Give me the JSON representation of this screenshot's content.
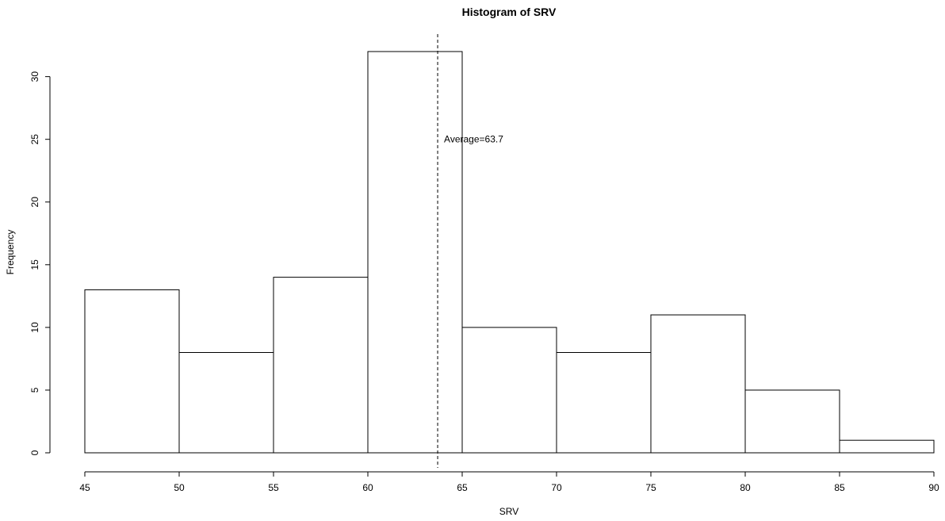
{
  "chart_data": {
    "type": "bar",
    "title": "Histogram of SRV",
    "xlabel": "SRV",
    "ylabel": "Frequency",
    "bins": [
      {
        "from": 45,
        "to": 50,
        "count": 13
      },
      {
        "from": 50,
        "to": 55,
        "count": 8
      },
      {
        "from": 55,
        "to": 60,
        "count": 14
      },
      {
        "from": 60,
        "to": 65,
        "count": 32
      },
      {
        "from": 65,
        "to": 70,
        "count": 10
      },
      {
        "from": 70,
        "to": 75,
        "count": 8
      },
      {
        "from": 75,
        "to": 80,
        "count": 11
      },
      {
        "from": 80,
        "to": 85,
        "count": 5
      },
      {
        "from": 85,
        "to": 90,
        "count": 1
      }
    ],
    "xlim": [
      45,
      90
    ],
    "ylim": [
      0,
      32
    ],
    "x_ticks": [
      45,
      50,
      55,
      60,
      65,
      70,
      75,
      80,
      85,
      90
    ],
    "y_ticks": [
      0,
      5,
      10,
      15,
      20,
      25,
      30
    ],
    "mean_line": {
      "value": 63.7,
      "label": "Average=63.7",
      "label_y": 25
    },
    "grid": false,
    "legend": "none"
  }
}
